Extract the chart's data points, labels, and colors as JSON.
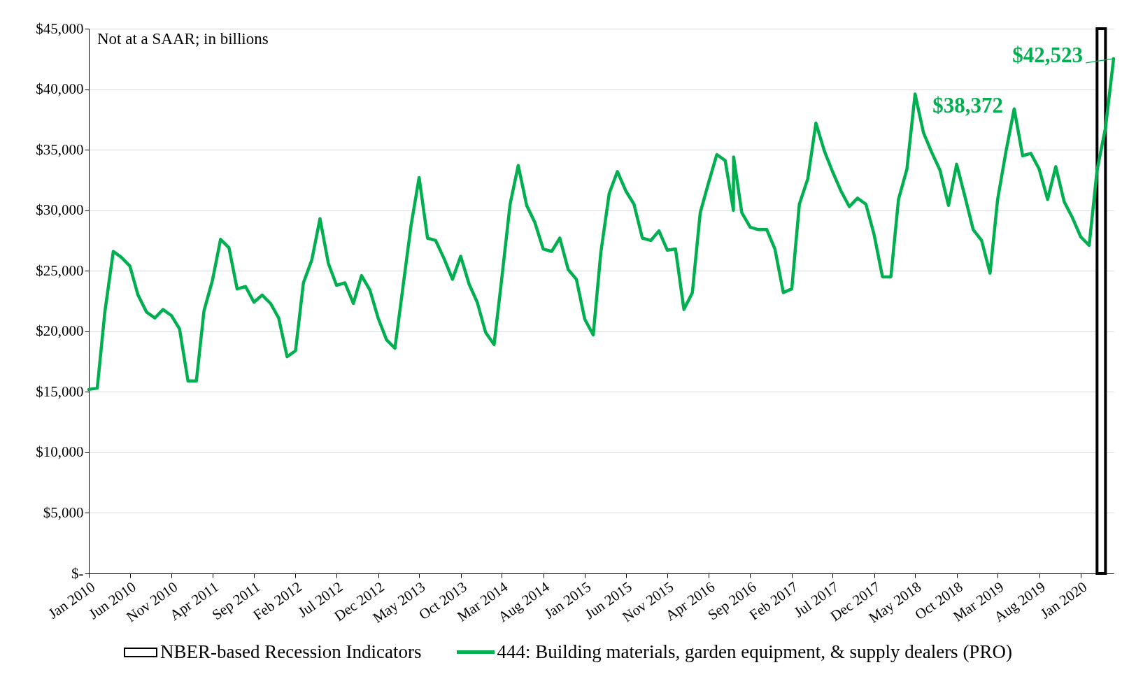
{
  "chart_data": {
    "type": "line",
    "annotations": [
      "Not at a SAAR; in billions"
    ],
    "x": [
      "2010-01",
      "2010-02",
      "2010-03",
      "2010-04",
      "2010-05",
      "2010-06",
      "2010-07",
      "2010-08",
      "2010-09",
      "2010-10",
      "2010-11",
      "2010-12",
      "2011-01",
      "2011-02",
      "2011-03",
      "2011-04",
      "2011-05",
      "2011-06",
      "2011-07",
      "2011-08",
      "2011-09",
      "2011-10",
      "2011-11",
      "2011-12",
      "2012-01",
      "2012-02",
      "2012-03",
      "2012-04",
      "2012-05",
      "2012-06",
      "2012-07",
      "2012-08",
      "2012-09",
      "2012-10",
      "2012-11",
      "2012-12",
      "2013-01",
      "2013-02",
      "2013-03",
      "2013-04",
      "2013-05",
      "2013-06",
      "2013-07",
      "2013-08",
      "2013-09",
      "2013-10",
      "2013-11",
      "2013-12",
      "2014-01",
      "2014-02",
      "2014-03",
      "2014-04",
      "2014-05",
      "2014-06",
      "2014-07",
      "2014-08",
      "2014-09",
      "2014-10",
      "2014-11",
      "2014-12",
      "2015-01",
      "2015-02",
      "2015-03",
      "2015-04",
      "2015-05",
      "2015-06",
      "2015-07",
      "2015-08",
      "2015-09",
      "2015-10",
      "2015-11",
      "2015-12",
      "2016-01",
      "2016-02",
      "2016-03",
      "2016-04",
      "2016-05",
      "2016-06",
      "2016-07-01",
      "2016-07-02",
      "2016-08",
      "2016-09",
      "2016-10",
      "2016-11",
      "2016-12",
      "2017-01",
      "2017-02",
      "2017-03",
      "2017-04",
      "2017-05",
      "2017-06",
      "2017-07",
      "2017-08",
      "2017-09",
      "2017-10",
      "2017-11",
      "2017-12",
      "2018-01",
      "2018-02",
      "2018-03",
      "2018-04",
      "2018-05",
      "2018-06",
      "2018-07",
      "2018-08",
      "2018-09",
      "2018-10",
      "2018-11",
      "2018-12",
      "2019-01",
      "2019-02",
      "2019-03",
      "2019-04",
      "2019-05",
      "2019-06",
      "2019-07",
      "2019-08",
      "2019-09",
      "2019-10",
      "2019-11",
      "2019-12",
      "2020-01",
      "2020-02",
      "2020-03",
      "2020-04",
      "2020-05"
    ],
    "series": [
      {
        "name": "444: Building materials, garden equipment, & supply dealers (PRO)",
        "color": "#00b050",
        "values": [
          15200,
          15300,
          21600,
          26600,
          26100,
          25400,
          23000,
          21600,
          21100,
          21800,
          21300,
          20200,
          15900,
          15900,
          21700,
          24200,
          27600,
          26900,
          23500,
          23700,
          22400,
          23000,
          22300,
          21100,
          17900,
          18400,
          24000,
          25900,
          29300,
          25600,
          23800,
          24000,
          22300,
          24600,
          23400,
          21100,
          19300,
          18600,
          23400,
          28700,
          32700,
          27700,
          27500,
          26000,
          24300,
          26200,
          23900,
          22400,
          19900,
          18900,
          24300,
          30500,
          33700,
          30400,
          29000,
          26800,
          26600,
          27700,
          25100,
          24300,
          21000,
          19700,
          26500,
          31400,
          33200,
          31600,
          30500,
          27700,
          27500,
          28300,
          26700,
          26800,
          21800,
          23200,
          29800,
          32300,
          34600,
          34100,
          30000,
          34400,
          29800,
          28600,
          28400,
          28400,
          26800,
          23200,
          23500,
          30500,
          32600,
          37200,
          34900,
          33200,
          31600,
          30300,
          31000,
          30500,
          28000,
          24500,
          24500,
          30900,
          33400,
          39600,
          36400,
          34800,
          33300,
          30400,
          33800,
          31100,
          28400,
          27500,
          24800,
          30900,
          34900,
          38372,
          34500,
          34700,
          33400,
          30900,
          33600,
          30700,
          29400,
          27800,
          27100,
          33300,
          36800,
          42523
        ],
        "value_labels": [
          null,
          null,
          null,
          null,
          null,
          null,
          null,
          null,
          null,
          null,
          null,
          null,
          null,
          null,
          null,
          null,
          null,
          null,
          null,
          null,
          null,
          null,
          null,
          null,
          null,
          null,
          null,
          null,
          null,
          null,
          null,
          null,
          null,
          null,
          null,
          null,
          null,
          null,
          null,
          null,
          null,
          null,
          null,
          null,
          null,
          null,
          null,
          null,
          null,
          null,
          null,
          null,
          null,
          null,
          null,
          null,
          null,
          null,
          null,
          null,
          null,
          null,
          null,
          null,
          null,
          null,
          null,
          null,
          null,
          null,
          null,
          null,
          null,
          null,
          null,
          null,
          null,
          null,
          null,
          null,
          null,
          null,
          null,
          null,
          null,
          null,
          null,
          null,
          null,
          null,
          null,
          null,
          null,
          null,
          null,
          null,
          null,
          null,
          null,
          null,
          null,
          null,
          null,
          null,
          null,
          null,
          null,
          null,
          null,
          null,
          null,
          null,
          null,
          "$38,372",
          null,
          null,
          null,
          null,
          null,
          null,
          null,
          null,
          null,
          null,
          null,
          "$42,523"
        ]
      }
    ],
    "bands": [
      {
        "axis": "x",
        "from": "2020-03",
        "to": "2020-04",
        "label": "NBER-based Recession Indicators",
        "color": "#000000"
      }
    ],
    "xlim": [
      "2010-01",
      "2020-05"
    ],
    "xticks": [
      {
        "value": "2010-01",
        "label": "Jan 2010"
      },
      {
        "value": "2010-06",
        "label": "Jun 2010"
      },
      {
        "value": "2010-11",
        "label": "Nov 2010"
      },
      {
        "value": "2011-04",
        "label": "Apr 2011"
      },
      {
        "value": "2011-09",
        "label": "Sep 2011"
      },
      {
        "value": "2012-02",
        "label": "Feb 2012"
      },
      {
        "value": "2012-07",
        "label": "Jul 2012"
      },
      {
        "value": "2012-12",
        "label": "Dec 2012"
      },
      {
        "value": "2013-05",
        "label": "May 2013"
      },
      {
        "value": "2013-10",
        "label": "Oct 2013"
      },
      {
        "value": "2014-03",
        "label": "Mar 2014"
      },
      {
        "value": "2014-08",
        "label": "Aug 2014"
      },
      {
        "value": "2015-01",
        "label": "Jan 2015"
      },
      {
        "value": "2015-06",
        "label": "Jun 2015"
      },
      {
        "value": "2015-11",
        "label": "Nov 2015"
      },
      {
        "value": "2016-04",
        "label": "Apr 2016"
      },
      {
        "value": "2016-09",
        "label": "Sep 2016"
      },
      {
        "value": "2017-02",
        "label": "Feb 2017"
      },
      {
        "value": "2017-07",
        "label": "Jul 2017"
      },
      {
        "value": "2017-12",
        "label": "Dec 2017"
      },
      {
        "value": "2018-05",
        "label": "May 2018"
      },
      {
        "value": "2018-10",
        "label": "Oct 2018"
      },
      {
        "value": "2019-03",
        "label": "Mar 2019"
      },
      {
        "value": "2019-08",
        "label": "Aug 2019"
      },
      {
        "value": "2020-01",
        "label": "Jan 2020"
      }
    ],
    "ylim": [
      0,
      45000
    ],
    "yticks": [
      {
        "value": 0,
        "label": "$-"
      },
      {
        "value": 5000,
        "label": "$5,000"
      },
      {
        "value": 10000,
        "label": "$10,000"
      },
      {
        "value": 15000,
        "label": "$15,000"
      },
      {
        "value": 20000,
        "label": "$20,000"
      },
      {
        "value": 25000,
        "label": "$25,000"
      },
      {
        "value": 30000,
        "label": "$30,000"
      },
      {
        "value": 35000,
        "label": "$35,000"
      },
      {
        "value": 40000,
        "label": "$40,000"
      },
      {
        "value": 45000,
        "label": "$45,000"
      }
    ],
    "grid": "y",
    "legend": "bottom"
  }
}
